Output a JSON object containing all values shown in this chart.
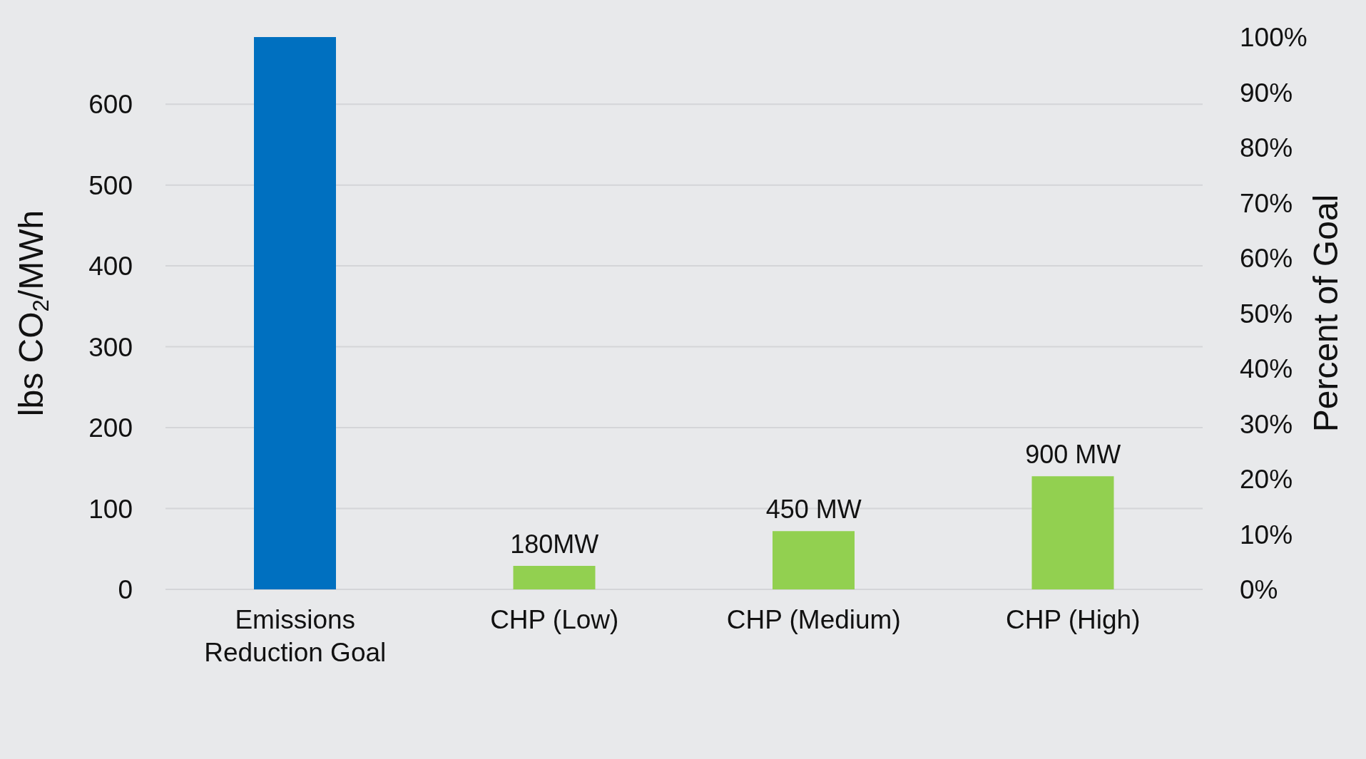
{
  "chart_data": {
    "type": "bar",
    "categories": [
      "Emissions Reduction Goal",
      "CHP (Low)",
      "CHP (Medium)",
      "CHP (High)"
    ],
    "values": [
      683,
      29,
      72,
      140
    ],
    "colors": [
      "#0070c0",
      "#92d050",
      "#92d050",
      "#92d050"
    ],
    "annotations": [
      {
        "text": "180MW",
        "x": "CHP (Low)",
        "y": 29
      },
      {
        "text": "450 MW",
        "x": "CHP (Medium)",
        "y": 72
      },
      {
        "text": "900 MW",
        "x": "CHP (High)",
        "y": 140
      }
    ],
    "ylabel": "lbs CO$_{2}$/MWh",
    "y2label": "Percent of Goal",
    "ylim": [
      0,
      683
    ],
    "yticks": [
      0,
      100,
      200,
      300,
      400,
      500,
      600
    ],
    "y2lim": [
      0,
      100
    ],
    "y2ticks": [
      {
        "value": 0,
        "label": "0%"
      },
      {
        "value": 10,
        "label": "10%"
      },
      {
        "value": 20,
        "label": "20%"
      },
      {
        "value": 30,
        "label": "30%"
      },
      {
        "value": 40,
        "label": "40%"
      },
      {
        "value": 50,
        "label": "50%"
      },
      {
        "value": 60,
        "label": "60%"
      },
      {
        "value": 70,
        "label": "70%"
      },
      {
        "value": 80,
        "label": "80%"
      },
      {
        "value": 90,
        "label": "90%"
      },
      {
        "value": 100,
        "label": "100%"
      }
    ],
    "grid": "y",
    "legend": false
  }
}
